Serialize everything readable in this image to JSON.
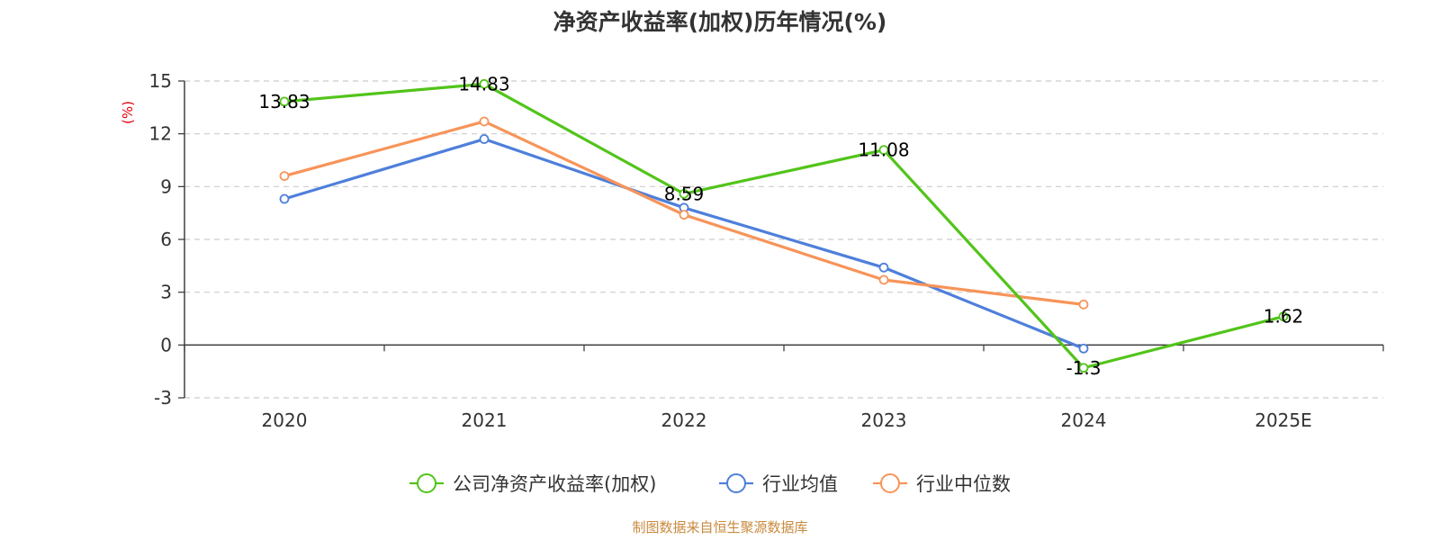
{
  "chart_data": {
    "type": "line",
    "title": "净资产收益率(加权)历年情况(%)",
    "ylabel": "(%)",
    "xlabel": "",
    "categories": [
      "2020",
      "2021",
      "2022",
      "2023",
      "2024",
      "2025E"
    ],
    "ylim": [
      -3,
      15
    ],
    "yticks": [
      "15",
      "12",
      "9",
      "6",
      "3",
      "0",
      "-3"
    ],
    "grid": true,
    "legend_position": "bottom",
    "series": [
      {
        "name": "公司净资产收益率(加权)",
        "color": "#52c41a",
        "values": [
          13.83,
          14.83,
          8.59,
          11.08,
          -1.3,
          1.62
        ],
        "labels": [
          "13.83",
          "14.83",
          "8.59",
          "11.08",
          "-1.3",
          "1.62"
        ]
      },
      {
        "name": "行业均值",
        "color": "#4e7fdb",
        "values": [
          8.3,
          11.7,
          7.8,
          4.4,
          -0.2,
          null
        ]
      },
      {
        "name": "行业中位数",
        "color": "#f79459",
        "values": [
          9.6,
          12.7,
          7.4,
          3.7,
          2.3,
          null
        ]
      }
    ]
  },
  "source_note": "制图数据来自恒生聚源数据库",
  "colors": {
    "ylabel": "#e8000b",
    "source": "#c98a3d",
    "axis": "#333333",
    "grid": "#cccccc"
  }
}
